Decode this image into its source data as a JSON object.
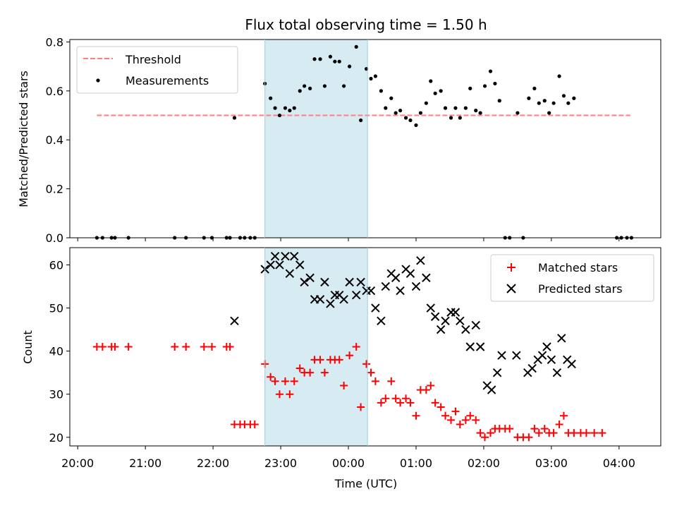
{
  "figure": {
    "title": "Flux total observing time = 1.50 h",
    "xlabel": "Time (UTC)"
  },
  "x_ticks": [
    "20:00",
    "21:00",
    "22:00",
    "23:00",
    "00:00",
    "01:00",
    "02:00",
    "03:00",
    "04:00"
  ],
  "colors": {
    "threshold": "#ff7f7f",
    "measurement": "#000000",
    "matched": "#ff0000",
    "predicted": "#000000",
    "span": "#add8e6"
  },
  "chart_data": [
    {
      "type": "scatter",
      "ylabel": "Matched/Predicted stars",
      "xlim": [
        "19:53",
        "04:37"
      ],
      "ylim": [
        0,
        0.81
      ],
      "yticks": [
        "0.0",
        "0.2",
        "0.4",
        "0.6",
        "0.8"
      ],
      "legend_position": "upper-left",
      "shaded_interval": [
        "22:46",
        "00:17"
      ],
      "threshold": {
        "name": "Threshold",
        "y": 0.5,
        "x": [
          "20:17",
          "04:10"
        ]
      },
      "series": [
        {
          "name": "Measurements",
          "points": [
            [
              "20:17",
              0
            ],
            [
              "20:22",
              0
            ],
            [
              "20:30",
              0
            ],
            [
              "20:33",
              0
            ],
            [
              "20:45",
              0
            ],
            [
              "21:26",
              0
            ],
            [
              "21:36",
              0
            ],
            [
              "21:52",
              0
            ],
            [
              "21:59",
              0
            ],
            [
              "22:12",
              0
            ],
            [
              "22:15",
              0
            ],
            [
              "22:19",
              0.49
            ],
            [
              "22:24",
              0
            ],
            [
              "22:28",
              0
            ],
            [
              "22:33",
              0
            ],
            [
              "22:37",
              0
            ],
            [
              "22:46",
              0.63
            ],
            [
              "22:51",
              0.57
            ],
            [
              "22:55",
              0.53
            ],
            [
              "22:59",
              0.5
            ],
            [
              "23:04",
              0.53
            ],
            [
              "23:08",
              0.52
            ],
            [
              "23:12",
              0.53
            ],
            [
              "23:17",
              0.6
            ],
            [
              "23:21",
              0.62
            ],
            [
              "23:26",
              0.61
            ],
            [
              "23:30",
              0.73
            ],
            [
              "23:35",
              0.73
            ],
            [
              "23:39",
              0.62
            ],
            [
              "23:44",
              0.74
            ],
            [
              "23:48",
              0.72
            ],
            [
              "23:52",
              0.72
            ],
            [
              "23:56",
              0.62
            ],
            [
              "00:01",
              0.7
            ],
            [
              "00:07",
              0.78
            ],
            [
              "00:11",
              0.48
            ],
            [
              "00:16",
              0.69
            ],
            [
              "00:20",
              0.65
            ],
            [
              "00:24",
              0.66
            ],
            [
              "00:29",
              0.6
            ],
            [
              "00:33",
              0.53
            ],
            [
              "00:38",
              0.57
            ],
            [
              "00:42",
              0.51
            ],
            [
              "00:46",
              0.52
            ],
            [
              "00:51",
              0.49
            ],
            [
              "00:55",
              0.48
            ],
            [
              "01:00",
              0.46
            ],
            [
              "01:04",
              0.51
            ],
            [
              "01:09",
              0.55
            ],
            [
              "01:13",
              0.64
            ],
            [
              "01:17",
              0.59
            ],
            [
              "01:22",
              0.6
            ],
            [
              "01:26",
              0.53
            ],
            [
              "01:31",
              0.49
            ],
            [
              "01:35",
              0.53
            ],
            [
              "01:39",
              0.49
            ],
            [
              "01:44",
              0.53
            ],
            [
              "01:48",
              0.61
            ],
            [
              "01:53",
              0.52
            ],
            [
              "01:57",
              0.51
            ],
            [
              "02:01",
              0.62
            ],
            [
              "02:06",
              0.68
            ],
            [
              "02:10",
              0.63
            ],
            [
              "02:14",
              0.56
            ],
            [
              "02:19",
              0
            ],
            [
              "02:23",
              0
            ],
            [
              "02:30",
              0.51
            ],
            [
              "02:35",
              0
            ],
            [
              "02:40",
              0.57
            ],
            [
              "02:45",
              0.61
            ],
            [
              "02:49",
              0.55
            ],
            [
              "02:54",
              0.56
            ],
            [
              "02:58",
              0.51
            ],
            [
              "03:02",
              0.55
            ],
            [
              "03:07",
              0.66
            ],
            [
              "03:11",
              0.58
            ],
            [
              "03:15",
              0.55
            ],
            [
              "03:20",
              0.57
            ],
            [
              "03:58",
              0
            ],
            [
              "04:02",
              0
            ],
            [
              "04:07",
              0
            ],
            [
              "04:11",
              0
            ]
          ]
        }
      ]
    },
    {
      "type": "scatter",
      "ylabel": "Count",
      "xlim": [
        "19:53",
        "04:37"
      ],
      "ylim": [
        18,
        64
      ],
      "yticks": [
        "20",
        "30",
        "40",
        "50",
        "60"
      ],
      "legend_position": "upper-right",
      "shaded_interval": [
        "22:46",
        "00:17"
      ],
      "series": [
        {
          "name": "Matched stars",
          "marker": "plus",
          "points": [
            [
              "20:17",
              41
            ],
            [
              "20:22",
              41
            ],
            [
              "20:30",
              41
            ],
            [
              "20:33",
              41
            ],
            [
              "20:45",
              41
            ],
            [
              "21:26",
              41
            ],
            [
              "21:36",
              41
            ],
            [
              "21:52",
              41
            ],
            [
              "21:59",
              41
            ],
            [
              "22:12",
              41
            ],
            [
              "22:15",
              41
            ],
            [
              "22:19",
              23
            ],
            [
              "22:24",
              23
            ],
            [
              "22:28",
              23
            ],
            [
              "22:33",
              23
            ],
            [
              "22:37",
              23
            ],
            [
              "22:46",
              37
            ],
            [
              "22:51",
              34
            ],
            [
              "22:55",
              33
            ],
            [
              "22:59",
              30
            ],
            [
              "23:04",
              33
            ],
            [
              "23:08",
              30
            ],
            [
              "23:12",
              33
            ],
            [
              "23:17",
              36
            ],
            [
              "23:21",
              35
            ],
            [
              "23:26",
              35
            ],
            [
              "23:30",
              38
            ],
            [
              "23:35",
              38
            ],
            [
              "23:39",
              35
            ],
            [
              "23:44",
              38
            ],
            [
              "23:48",
              38
            ],
            [
              "23:52",
              38
            ],
            [
              "23:56",
              32
            ],
            [
              "00:01",
              39
            ],
            [
              "00:07",
              41
            ],
            [
              "00:11",
              27
            ],
            [
              "00:16",
              37
            ],
            [
              "00:20",
              35
            ],
            [
              "00:24",
              33
            ],
            [
              "00:29",
              28
            ],
            [
              "00:33",
              29
            ],
            [
              "00:38",
              33
            ],
            [
              "00:42",
              29
            ],
            [
              "00:46",
              28
            ],
            [
              "00:51",
              29
            ],
            [
              "00:55",
              28
            ],
            [
              "01:00",
              25
            ],
            [
              "01:04",
              31
            ],
            [
              "01:09",
              31
            ],
            [
              "01:13",
              32
            ],
            [
              "01:17",
              28
            ],
            [
              "01:22",
              27
            ],
            [
              "01:26",
              25
            ],
            [
              "01:31",
              24
            ],
            [
              "01:35",
              26
            ],
            [
              "01:39",
              23
            ],
            [
              "01:44",
              24
            ],
            [
              "01:48",
              25
            ],
            [
              "01:53",
              24
            ],
            [
              "01:57",
              21
            ],
            [
              "02:01",
              20
            ],
            [
              "02:06",
              21
            ],
            [
              "02:10",
              22
            ],
            [
              "02:14",
              22
            ],
            [
              "02:19",
              22
            ],
            [
              "02:23",
              22
            ],
            [
              "02:30",
              20
            ],
            [
              "02:35",
              20
            ],
            [
              "02:40",
              20
            ],
            [
              "02:45",
              22
            ],
            [
              "02:49",
              21
            ],
            [
              "02:54",
              22
            ],
            [
              "02:58",
              21
            ],
            [
              "03:02",
              21
            ],
            [
              "03:07",
              23
            ],
            [
              "03:11",
              25
            ],
            [
              "03:15",
              21
            ],
            [
              "03:20",
              21
            ],
            [
              "03:26",
              21
            ],
            [
              "03:31",
              21
            ],
            [
              "03:38",
              21
            ],
            [
              "03:45",
              21
            ]
          ]
        },
        {
          "name": "Predicted stars",
          "marker": "x",
          "points": [
            [
              "22:19",
              47
            ],
            [
              "22:46",
              59
            ],
            [
              "22:51",
              60
            ],
            [
              "22:55",
              62
            ],
            [
              "22:59",
              60
            ],
            [
              "23:04",
              62
            ],
            [
              "23:08",
              58
            ],
            [
              "23:12",
              62
            ],
            [
              "23:17",
              60
            ],
            [
              "23:21",
              56
            ],
            [
              "23:26",
              57
            ],
            [
              "23:30",
              52
            ],
            [
              "23:35",
              52
            ],
            [
              "23:39",
              56
            ],
            [
              "23:44",
              51
            ],
            [
              "23:48",
              53
            ],
            [
              "23:52",
              53
            ],
            [
              "23:56",
              52
            ],
            [
              "00:01",
              56
            ],
            [
              "00:07",
              53
            ],
            [
              "00:11",
              56
            ],
            [
              "00:16",
              54
            ],
            [
              "00:20",
              54
            ],
            [
              "00:24",
              50
            ],
            [
              "00:29",
              47
            ],
            [
              "00:33",
              55
            ],
            [
              "00:38",
              58
            ],
            [
              "00:42",
              57
            ],
            [
              "00:46",
              54
            ],
            [
              "00:51",
              59
            ],
            [
              "00:55",
              58
            ],
            [
              "01:00",
              55
            ],
            [
              "01:04",
              61
            ],
            [
              "01:09",
              57
            ],
            [
              "01:13",
              50
            ],
            [
              "01:17",
              48
            ],
            [
              "01:22",
              45
            ],
            [
              "01:26",
              47
            ],
            [
              "01:31",
              49
            ],
            [
              "01:35",
              49
            ],
            [
              "01:39",
              47
            ],
            [
              "01:44",
              45
            ],
            [
              "01:48",
              41
            ],
            [
              "01:53",
              46
            ],
            [
              "01:57",
              41
            ],
            [
              "02:03",
              32
            ],
            [
              "02:07",
              31
            ],
            [
              "02:12",
              35
            ],
            [
              "02:16",
              39
            ],
            [
              "02:29",
              39
            ],
            [
              "02:39",
              35
            ],
            [
              "02:43",
              36
            ],
            [
              "02:48",
              38
            ],
            [
              "02:52",
              39
            ],
            [
              "02:56",
              41
            ],
            [
              "03:00",
              38
            ],
            [
              "03:05",
              35
            ],
            [
              "03:09",
              43
            ],
            [
              "03:14",
              38
            ],
            [
              "03:18",
              37
            ]
          ]
        }
      ]
    }
  ]
}
